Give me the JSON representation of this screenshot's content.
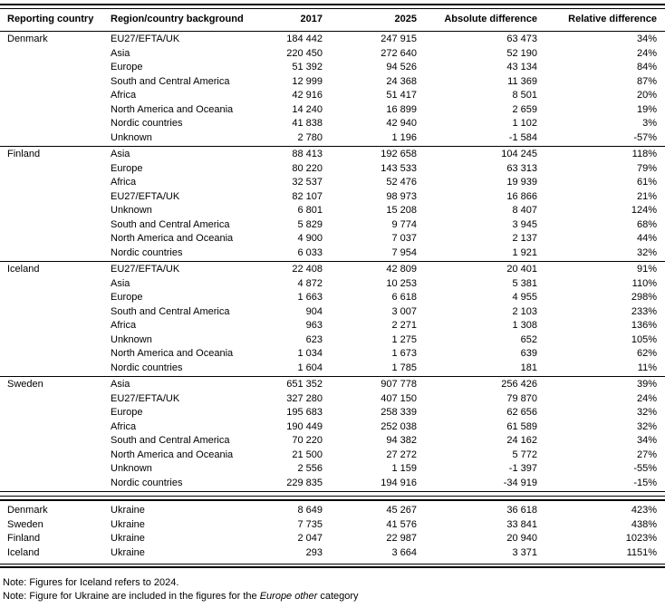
{
  "table": {
    "columns": {
      "reporting_country": "Reporting country",
      "region_background": "Region/country background",
      "y2017": "2017",
      "y2025": "2025",
      "absolute_difference": "Absolute difference",
      "relative_difference": "Relative difference"
    },
    "sections": [
      {
        "country": "Denmark",
        "rows": [
          {
            "region": "EU27/EFTA/UK",
            "y2017": "184 442",
            "y2025": "247 915",
            "abs": "63 473",
            "rel": "34%"
          },
          {
            "region": "Asia",
            "y2017": "220 450",
            "y2025": "272 640",
            "abs": "52 190",
            "rel": "24%"
          },
          {
            "region": "Europe",
            "y2017": "51 392",
            "y2025": "94 526",
            "abs": "43 134",
            "rel": "84%"
          },
          {
            "region": "South and Central America",
            "y2017": "12 999",
            "y2025": "24 368",
            "abs": "11 369",
            "rel": "87%"
          },
          {
            "region": "Africa",
            "y2017": "42 916",
            "y2025": "51 417",
            "abs": "8 501",
            "rel": "20%"
          },
          {
            "region": "North America and Oceania",
            "y2017": "14 240",
            "y2025": "16 899",
            "abs": "2 659",
            "rel": "19%"
          },
          {
            "region": "Nordic countries",
            "y2017": "41 838",
            "y2025": "42 940",
            "abs": "1 102",
            "rel": "3%"
          },
          {
            "region": "Unknown",
            "y2017": "2 780",
            "y2025": "1 196",
            "abs": "-1 584",
            "rel": "-57%"
          }
        ]
      },
      {
        "country": "Finland",
        "rows": [
          {
            "region": "Asia",
            "y2017": "88 413",
            "y2025": "192 658",
            "abs": "104 245",
            "rel": "118%"
          },
          {
            "region": "Europe",
            "y2017": "80 220",
            "y2025": "143 533",
            "abs": "63 313",
            "rel": "79%"
          },
          {
            "region": "Africa",
            "y2017": "32 537",
            "y2025": "52 476",
            "abs": "19 939",
            "rel": "61%"
          },
          {
            "region": "EU27/EFTA/UK",
            "y2017": "82 107",
            "y2025": "98 973",
            "abs": "16 866",
            "rel": "21%"
          },
          {
            "region": "Unknown",
            "y2017": "6 801",
            "y2025": "15 208",
            "abs": "8 407",
            "rel": "124%"
          },
          {
            "region": "South and Central America",
            "y2017": "5 829",
            "y2025": "9 774",
            "abs": "3 945",
            "rel": "68%"
          },
          {
            "region": "North America and Oceania",
            "y2017": "4 900",
            "y2025": "7 037",
            "abs": "2 137",
            "rel": "44%"
          },
          {
            "region": "Nordic countries",
            "y2017": "6 033",
            "y2025": "7 954",
            "abs": "1 921",
            "rel": "32%"
          }
        ]
      },
      {
        "country": "Iceland",
        "rows": [
          {
            "region": "EU27/EFTA/UK",
            "y2017": "22 408",
            "y2025": "42 809",
            "abs": "20 401",
            "rel": "91%"
          },
          {
            "region": "Asia",
            "y2017": "4 872",
            "y2025": "10 253",
            "abs": "5 381",
            "rel": "110%"
          },
          {
            "region": "Europe",
            "y2017": "1 663",
            "y2025": "6 618",
            "abs": "4 955",
            "rel": "298%"
          },
          {
            "region": "South and Central America",
            "y2017": "904",
            "y2025": "3 007",
            "abs": "2 103",
            "rel": "233%"
          },
          {
            "region": "Africa",
            "y2017": "963",
            "y2025": "2 271",
            "abs": "1 308",
            "rel": "136%"
          },
          {
            "region": "Unknown",
            "y2017": "623",
            "y2025": "1 275",
            "abs": "652",
            "rel": "105%"
          },
          {
            "region": "North America and Oceania",
            "y2017": "1 034",
            "y2025": "1 673",
            "abs": "639",
            "rel": "62%"
          },
          {
            "region": "Nordic countries",
            "y2017": "1 604",
            "y2025": "1 785",
            "abs": "181",
            "rel": "11%"
          }
        ]
      },
      {
        "country": "Sweden",
        "rows": [
          {
            "region": "Asia",
            "y2017": "651 352",
            "y2025": "907 778",
            "abs": "256 426",
            "rel": "39%"
          },
          {
            "region": "EU27/EFTA/UK",
            "y2017": "327 280",
            "y2025": "407 150",
            "abs": "79 870",
            "rel": "24%"
          },
          {
            "region": "Europe",
            "y2017": "195 683",
            "y2025": "258 339",
            "abs": "62 656",
            "rel": "32%"
          },
          {
            "region": "Africa",
            "y2017": "190 449",
            "y2025": "252 038",
            "abs": "61 589",
            "rel": "32%"
          },
          {
            "region": "South and Central America",
            "y2017": "70 220",
            "y2025": "94 382",
            "abs": "24 162",
            "rel": "34%"
          },
          {
            "region": "North America and Oceania",
            "y2017": "21 500",
            "y2025": "27 272",
            "abs": "5 772",
            "rel": "27%"
          },
          {
            "region": "Unknown",
            "y2017": "2 556",
            "y2025": "1 159",
            "abs": "-1 397",
            "rel": "-55%"
          },
          {
            "region": "Nordic countries",
            "y2017": "229 835",
            "y2025": "194 916",
            "abs": "-34 919",
            "rel": "-15%"
          }
        ]
      }
    ],
    "ukraine_rows": [
      {
        "country": "Denmark",
        "region": "Ukraine",
        "y2017": "8 649",
        "y2025": "45 267",
        "abs": "36 618",
        "rel": "423%"
      },
      {
        "country": "Sweden",
        "region": "Ukraine",
        "y2017": "7 735",
        "y2025": "41 576",
        "abs": "33 841",
        "rel": "438%"
      },
      {
        "country": "Finland",
        "region": "Ukraine",
        "y2017": "2 047",
        "y2025": "22 987",
        "abs": "20 940",
        "rel": "1023%"
      },
      {
        "country": "Iceland",
        "region": "Ukraine",
        "y2017": "293",
        "y2025": "3 664",
        "abs": "3 371",
        "rel": "1151%"
      }
    ],
    "notes": {
      "note1": "Note: Figures for Iceland refers to 2024.",
      "note2_prefix": "Note: Figure for Ukraine are included in the figures for the ",
      "note2_italic": "Europe other",
      "note2_suffix": " category"
    }
  }
}
